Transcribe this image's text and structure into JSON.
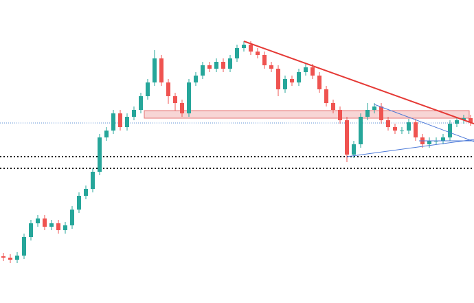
{
  "chart_data": {
    "type": "candlestick",
    "ylim": [
      0,
      441
    ],
    "up_color": "#26a69a",
    "down_color": "#ef5350",
    "open": [
      68,
      66,
      63,
      69,
      96,
      116,
      123,
      111,
      116,
      106,
      113,
      136,
      156,
      166,
      191,
      241,
      251,
      276,
      256,
      271,
      281,
      301,
      321,
      356,
      321,
      301,
      291,
      276,
      321,
      331,
      346,
      341,
      351,
      341,
      356,
      371,
      376,
      366,
      361,
      346,
      341,
      311,
      326,
      321,
      336,
      343,
      331,
      311,
      291,
      281,
      266,
      216,
      231,
      271,
      281,
      286,
      266,
      256,
      251,
      251,
      263,
      241,
      231,
      236,
      236,
      241,
      261,
      266,
      269
    ],
    "close": [
      66,
      63,
      69,
      96,
      116,
      123,
      111,
      116,
      106,
      113,
      136,
      156,
      166,
      191,
      241,
      251,
      276,
      256,
      271,
      281,
      301,
      321,
      356,
      321,
      301,
      291,
      276,
      321,
      331,
      346,
      341,
      351,
      341,
      356,
      371,
      376,
      366,
      361,
      346,
      341,
      311,
      326,
      321,
      336,
      343,
      331,
      311,
      291,
      281,
      266,
      216,
      231,
      271,
      281,
      286,
      266,
      256,
      251,
      251,
      263,
      241,
      231,
      236,
      236,
      241,
      261,
      266,
      269,
      263
    ],
    "high": [
      73,
      71,
      74,
      101,
      121,
      128,
      128,
      121,
      121,
      118,
      141,
      161,
      171,
      196,
      246,
      256,
      281,
      281,
      276,
      286,
      306,
      326,
      368,
      361,
      326,
      306,
      296,
      326,
      336,
      351,
      351,
      356,
      356,
      361,
      376,
      381,
      381,
      371,
      366,
      351,
      346,
      331,
      331,
      341,
      348,
      348,
      336,
      316,
      296,
      286,
      271,
      236,
      276,
      291,
      291,
      291,
      271,
      261,
      256,
      268,
      268,
      246,
      241,
      241,
      246,
      266,
      271,
      274,
      274
    ],
    "low": [
      61,
      58,
      58,
      64,
      91,
      111,
      106,
      106,
      101,
      101,
      108,
      131,
      151,
      161,
      186,
      236,
      246,
      251,
      251,
      266,
      276,
      296,
      316,
      316,
      290,
      280,
      271,
      271,
      316,
      326,
      336,
      336,
      336,
      336,
      351,
      366,
      361,
      356,
      341,
      336,
      301,
      306,
      316,
      316,
      331,
      326,
      306,
      286,
      276,
      261,
      205,
      211,
      226,
      266,
      276,
      261,
      251,
      246,
      246,
      246,
      236,
      226,
      226,
      231,
      231,
      236,
      256,
      261,
      258
    ],
    "levels": [
      {
        "value": 262,
        "color": "#5b8fd6",
        "dash": "1 2",
        "width": 1
      },
      {
        "value": 213,
        "color": "#111111",
        "dash": "2 3",
        "width": 2
      },
      {
        "value": 196,
        "color": "#111111",
        "dash": "2 3",
        "width": 2
      }
    ],
    "zone": {
      "from": 21,
      "to": 68.3,
      "top": 280,
      "bottom": 269,
      "color": "#e57373"
    },
    "trend_lines": [
      {
        "from": [
          35,
          381
        ],
        "to": [
          68.5,
          261
        ],
        "color": "#e53935",
        "width": 2
      },
      {
        "from": [
          54,
          289
        ],
        "to": [
          68.5,
          235
        ],
        "color": "#4a78d8",
        "width": 1
      },
      {
        "from": [
          50,
          213
        ],
        "to": [
          68.5,
          238
        ],
        "color": "#4a78d8",
        "width": 1
      },
      {
        "from": [
          60.5,
          236
        ],
        "to": [
          68.5,
          236
        ],
        "color": "#4a78d8",
        "width": 1
      }
    ]
  }
}
